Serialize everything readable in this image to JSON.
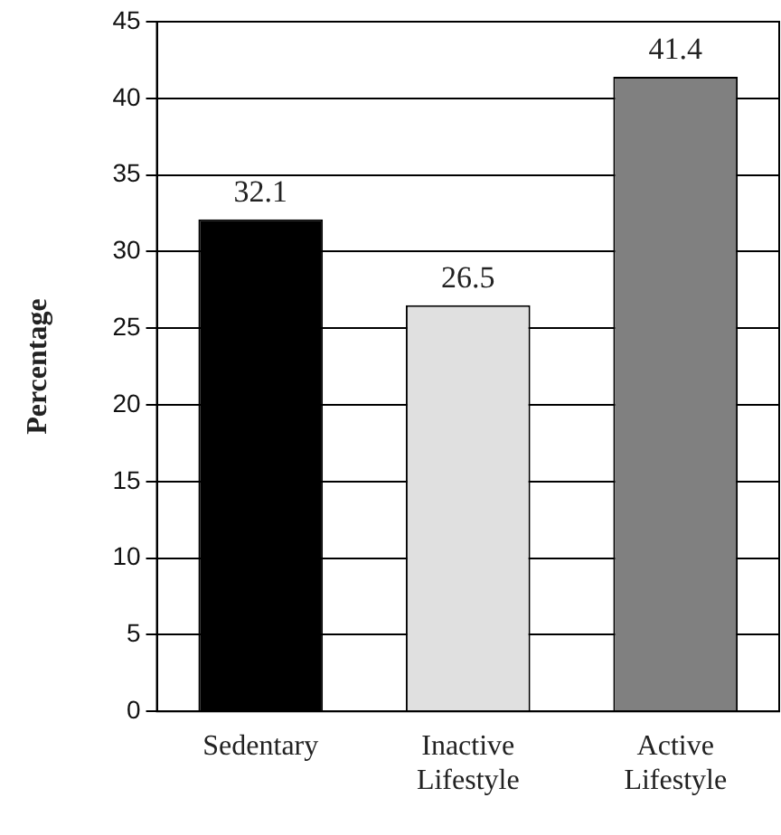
{
  "chart_data": {
    "type": "bar",
    "ylabel": "Percentage",
    "categories": [
      "Sedentary",
      "Inactive Lifestyle",
      "Active Lifestyle"
    ],
    "values": [
      32.1,
      26.5,
      41.4
    ],
    "colors": [
      "#000000",
      "#e0e0e0",
      "#808080"
    ],
    "ylim": [
      0,
      45
    ],
    "yticks": [
      0,
      5,
      10,
      15,
      20,
      25,
      30,
      35,
      40,
      45
    ],
    "grid": "y",
    "data_labels": true,
    "legend": false
  }
}
